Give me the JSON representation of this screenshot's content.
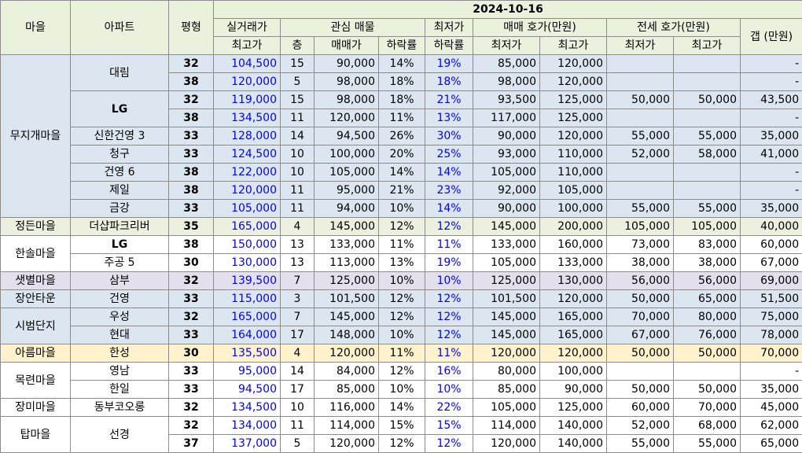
{
  "header": {
    "date": "2024-10-16",
    "village": "마을",
    "apartment": "아파트",
    "pyeong": "평형",
    "actual_trade_top": "실거래가",
    "actual_trade_bottom": "최고가",
    "interest_listing": "관심 매물",
    "lowest_top": "최저가",
    "lowest_bottom": "하락률",
    "sale_ask": "매매 호가(만원)",
    "jeonse_ask": "전세 호가(만원)",
    "gap": "갭 (만원)",
    "floor": "층",
    "sale_price": "매매가",
    "drop_rate": "하락률",
    "min": "최저가",
    "max": "최고가"
  },
  "rows": [
    {
      "village": "무지개마을",
      "apt": "대림",
      "size": "32",
      "top": "104,500",
      "floor": "15",
      "price": "90,000",
      "drop": "14%",
      "lowdrop": "19%",
      "smin": "85,000",
      "smax": "120,000",
      "jmin": "",
      "jmax": "",
      "gap": "-"
    },
    {
      "village": "",
      "apt": "",
      "size": "38",
      "top": "120,000",
      "floor": "5",
      "price": "98,000",
      "drop": "18%",
      "lowdrop": "18%",
      "smin": "98,000",
      "smax": "120,000",
      "jmin": "",
      "jmax": "",
      "gap": "-"
    },
    {
      "village": "",
      "apt": "LG",
      "size": "32",
      "top": "119,000",
      "floor": "15",
      "price": "98,000",
      "drop": "18%",
      "lowdrop": "21%",
      "smin": "93,500",
      "smax": "125,000",
      "jmin": "50,000",
      "jmax": "50,000",
      "gap": "43,500"
    },
    {
      "village": "",
      "apt": "",
      "size": "38",
      "top": "134,500",
      "floor": "11",
      "price": "120,000",
      "drop": "11%",
      "lowdrop": "13%",
      "smin": "117,000",
      "smax": "125,000",
      "jmin": "",
      "jmax": "",
      "gap": "-"
    },
    {
      "village": "",
      "apt": "신한건영 3",
      "size": "33",
      "top": "128,000",
      "floor": "14",
      "price": "94,500",
      "drop": "26%",
      "lowdrop": "30%",
      "smin": "90,000",
      "smax": "120,000",
      "jmin": "55,000",
      "jmax": "55,000",
      "gap": "35,000"
    },
    {
      "village": "",
      "apt": "청구",
      "size": "33",
      "top": "124,500",
      "floor": "10",
      "price": "100,000",
      "drop": "20%",
      "lowdrop": "25%",
      "smin": "93,000",
      "smax": "110,000",
      "jmin": "52,000",
      "jmax": "58,000",
      "gap": "41,000"
    },
    {
      "village": "",
      "apt": "건영 6",
      "size": "38",
      "top": "122,000",
      "floor": "10",
      "price": "105,000",
      "drop": "14%",
      "lowdrop": "14%",
      "smin": "105,000",
      "smax": "110,000",
      "jmin": "",
      "jmax": "",
      "gap": "-"
    },
    {
      "village": "",
      "apt": "제일",
      "size": "38",
      "top": "120,000",
      "floor": "11",
      "price": "95,000",
      "drop": "21%",
      "lowdrop": "23%",
      "smin": "92,000",
      "smax": "105,000",
      "jmin": "",
      "jmax": "",
      "gap": "-"
    },
    {
      "village": "",
      "apt": "금강",
      "size": "33",
      "top": "105,000",
      "floor": "11",
      "price": "94,000",
      "drop": "10%",
      "lowdrop": "14%",
      "smin": "90,000",
      "smax": "100,000",
      "jmin": "55,000",
      "jmax": "55,000",
      "gap": "35,000"
    },
    {
      "village": "정든마을",
      "apt": "더샵파크리버",
      "size": "35",
      "top": "165,000",
      "floor": "4",
      "price": "145,000",
      "drop": "12%",
      "lowdrop": "12%",
      "smin": "145,000",
      "smax": "200,000",
      "jmin": "105,000",
      "jmax": "105,000",
      "gap": "40,000"
    },
    {
      "village": "한솔마을",
      "apt": "LG",
      "size": "38",
      "top": "150,000",
      "floor": "13",
      "price": "133,000",
      "drop": "11%",
      "lowdrop": "11%",
      "smin": "133,000",
      "smax": "160,000",
      "jmin": "73,000",
      "jmax": "83,000",
      "gap": "60,000"
    },
    {
      "village": "",
      "apt": "주공 5",
      "size": "30",
      "top": "130,000",
      "floor": "13",
      "price": "113,000",
      "drop": "13%",
      "lowdrop": "19%",
      "smin": "105,000",
      "smax": "133,000",
      "jmin": "38,000",
      "jmax": "38,000",
      "gap": "67,000"
    },
    {
      "village": "샛별마을",
      "apt": "삼부",
      "size": "32",
      "top": "139,500",
      "floor": "7",
      "price": "125,000",
      "drop": "10%",
      "lowdrop": "10%",
      "smin": "125,000",
      "smax": "130,000",
      "jmin": "56,000",
      "jmax": "56,000",
      "gap": "69,000"
    },
    {
      "village": "장안타운",
      "apt": "건영",
      "size": "33",
      "top": "115,000",
      "floor": "3",
      "price": "101,500",
      "drop": "12%",
      "lowdrop": "12%",
      "smin": "101,500",
      "smax": "120,000",
      "jmin": "50,000",
      "jmax": "65,000",
      "gap": "51,500"
    },
    {
      "village": "시범단지",
      "apt": "우성",
      "size": "32",
      "top": "165,000",
      "floor": "7",
      "price": "145,000",
      "drop": "12%",
      "lowdrop": "12%",
      "smin": "145,000",
      "smax": "165,000",
      "jmin": "70,000",
      "jmax": "80,000",
      "gap": "75,000"
    },
    {
      "village": "",
      "apt": "현대",
      "size": "33",
      "top": "164,000",
      "floor": "17",
      "price": "148,000",
      "drop": "10%",
      "lowdrop": "12%",
      "smin": "145,000",
      "smax": "165,000",
      "jmin": "67,000",
      "jmax": "76,000",
      "gap": "78,000"
    },
    {
      "village": "아름마을",
      "apt": "한성",
      "size": "30",
      "top": "135,500",
      "floor": "4",
      "price": "120,000",
      "drop": "11%",
      "lowdrop": "11%",
      "smin": "120,000",
      "smax": "120,000",
      "jmin": "50,000",
      "jmax": "50,000",
      "gap": "70,000"
    },
    {
      "village": "목련마을",
      "apt": "영남",
      "size": "33",
      "top": "95,000",
      "floor": "14",
      "price": "84,000",
      "drop": "12%",
      "lowdrop": "16%",
      "smin": "80,000",
      "smax": "100,000",
      "jmin": "",
      "jmax": "",
      "gap": "-"
    },
    {
      "village": "",
      "apt": "한일",
      "size": "33",
      "top": "94,500",
      "floor": "17",
      "price": "85,000",
      "drop": "10%",
      "lowdrop": "10%",
      "smin": "85,000",
      "smax": "90,000",
      "jmin": "50,000",
      "jmax": "50,000",
      "gap": "35,000"
    },
    {
      "village": "장미마을",
      "apt": "동부코오롱",
      "size": "32",
      "top": "134,500",
      "floor": "10",
      "price": "116,000",
      "drop": "14%",
      "lowdrop": "22%",
      "smin": "105,000",
      "smax": "125,000",
      "jmin": "60,000",
      "jmax": "70,000",
      "gap": "45,000"
    },
    {
      "village": "탑마을",
      "apt": "선경",
      "size": "32",
      "top": "134,000",
      "floor": "11",
      "price": "114,000",
      "drop": "15%",
      "lowdrop": "15%",
      "smin": "114,000",
      "smax": "140,000",
      "jmin": "52,000",
      "jmax": "68,000",
      "gap": "62,000"
    },
    {
      "village": "",
      "apt": "",
      "size": "37",
      "top": "137,000",
      "floor": "5",
      "price": "120,000",
      "drop": "12%",
      "lowdrop": "12%",
      "smin": "120,000",
      "smax": "140,000",
      "jmin": "55,000",
      "jmax": "55,000",
      "gap": "65,000"
    }
  ]
}
